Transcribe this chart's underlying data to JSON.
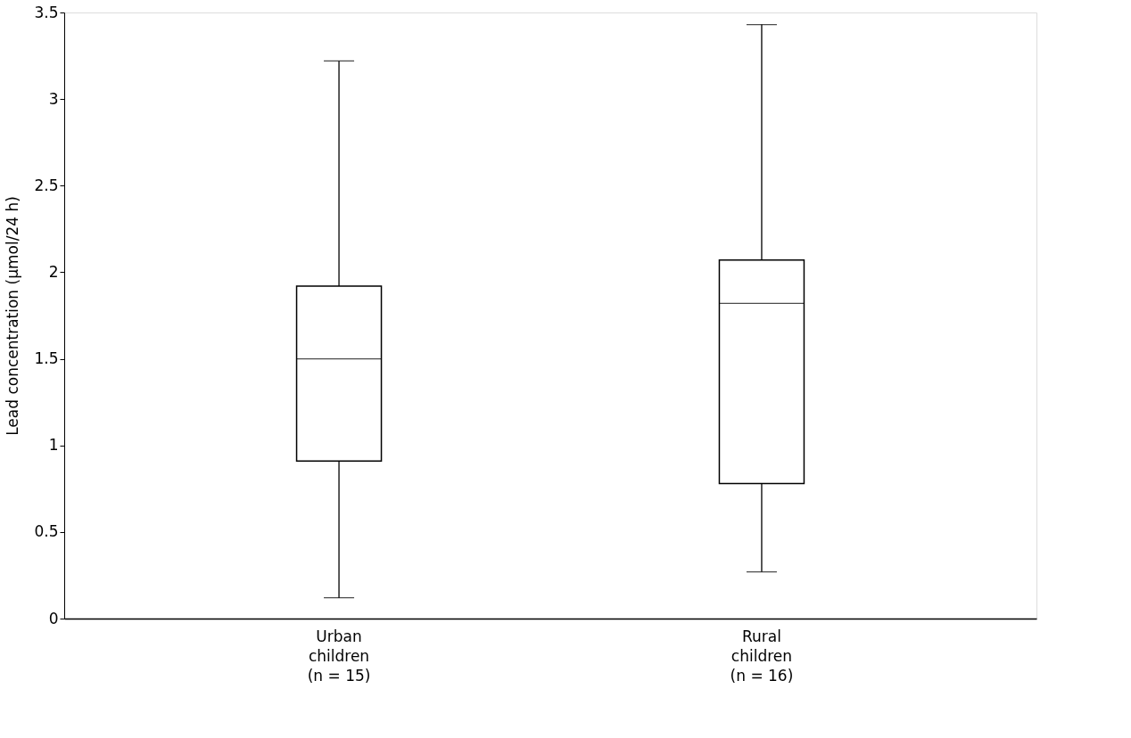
{
  "chart_data": {
    "type": "box",
    "ylabel": "Lead concentration (µmol/24 h)",
    "categories": [
      "Urban\nchildren\n(n = 15)",
      "Rural\nchildren\n(n = 16)"
    ],
    "boxes": [
      {
        "low": 0.12,
        "q1": 0.91,
        "median": 1.5,
        "q3": 1.92,
        "high": 3.22
      },
      {
        "low": 0.27,
        "q1": 0.78,
        "median": 1.82,
        "q3": 2.07,
        "high": 3.43
      }
    ],
    "color": "#000000",
    "ylim": [
      0,
      3.5
    ],
    "yticks": [
      0,
      0.5,
      1,
      1.5,
      2,
      2.5,
      3,
      3.5
    ],
    "grid": false
  }
}
